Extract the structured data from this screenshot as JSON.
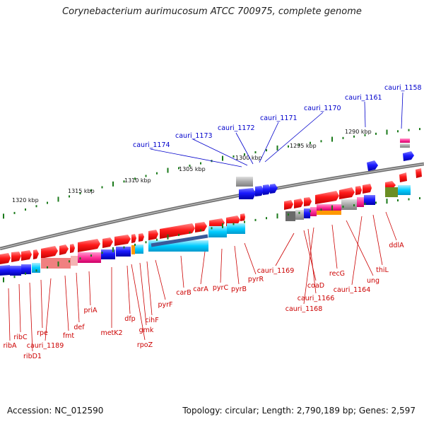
{
  "title": "Corynebacterium aurimucosum ATCC 700975, complete genome",
  "footer": {
    "accession": "Accession: NC_012590",
    "summary": "Topology: circular; Length: 2,790,189 bp; Genes: 2,597"
  },
  "scale_labels": [
    "1320 kbp",
    "1315 kbp",
    "1310 kbp",
    "1305 kbp",
    "1300 kbp",
    "1295 kbp",
    "1290 kbp"
  ],
  "upper_gene_labels": [
    "cauri_1158",
    "cauri_1161",
    "cauri_1170",
    "cauri_1171",
    "cauri_1172",
    "cauri_1173",
    "cauri_1174"
  ],
  "lower_gene_labels": [
    "ribA",
    "ribC",
    "ribD1",
    "rpe",
    "cauri_1189",
    "fmt",
    "def",
    "priA",
    "metK2",
    "dfp",
    "rpoZ",
    "gmk",
    "cihF",
    "pyrF",
    "carB",
    "carA",
    "pyrC",
    "pyrB",
    "pyrR",
    "cauri_1169",
    "coaD",
    "cauri_1166",
    "cauri_1168",
    "recG",
    "ung",
    "cauri_1164",
    "thiL",
    "ddlA"
  ],
  "colors": {
    "forward_gene": "#ff1a1a",
    "reverse_gene": "#1a1aff",
    "rrna": "#00ccff",
    "magenta": "#ff3399",
    "grey": "#a8a8a8",
    "olive": "#6b8e23",
    "orange": "#ff9900",
    "backbone": "#777777",
    "tick": "#1a7a1a",
    "label_blue": "#0000cc",
    "label_red": "#cc0000"
  }
}
